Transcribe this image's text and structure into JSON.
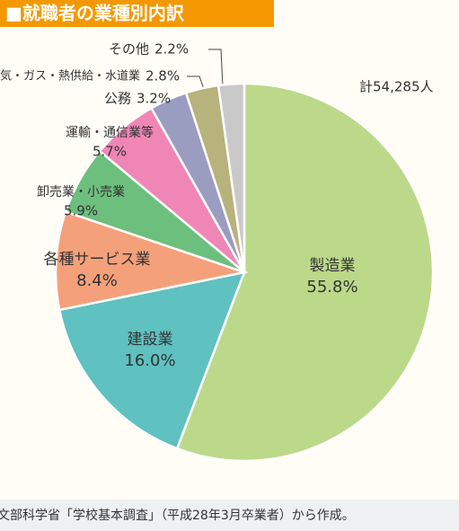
{
  "chart_data": {
    "type": "pie",
    "title": "■就職者の業種別内訳",
    "total_label": "計54,285人",
    "source": "文部科学省「学校基本調査」（平成28年3月卒業者）から作成。",
    "categories": [
      "製造業",
      "建設業",
      "各種サービス業",
      "卸売業・小売業",
      "運輸・通信業等",
      "公務",
      "電気・ガス・熱供給・水道業",
      "その他"
    ],
    "values": [
      55.8,
      16.0,
      8.4,
      5.9,
      5.7,
      3.2,
      2.8,
      2.2
    ],
    "value_labels": [
      "55.8%",
      "16.0%",
      "8.4%",
      "5.9%",
      "5.7%",
      "3.2%",
      "2.8%",
      "2.2%"
    ],
    "colors": [
      "#bcd98a",
      "#5fc1c0",
      "#f4a07a",
      "#6dbf7e",
      "#ef86b6",
      "#9a9cc0",
      "#b8b27c",
      "#c9c9c9"
    ]
  }
}
